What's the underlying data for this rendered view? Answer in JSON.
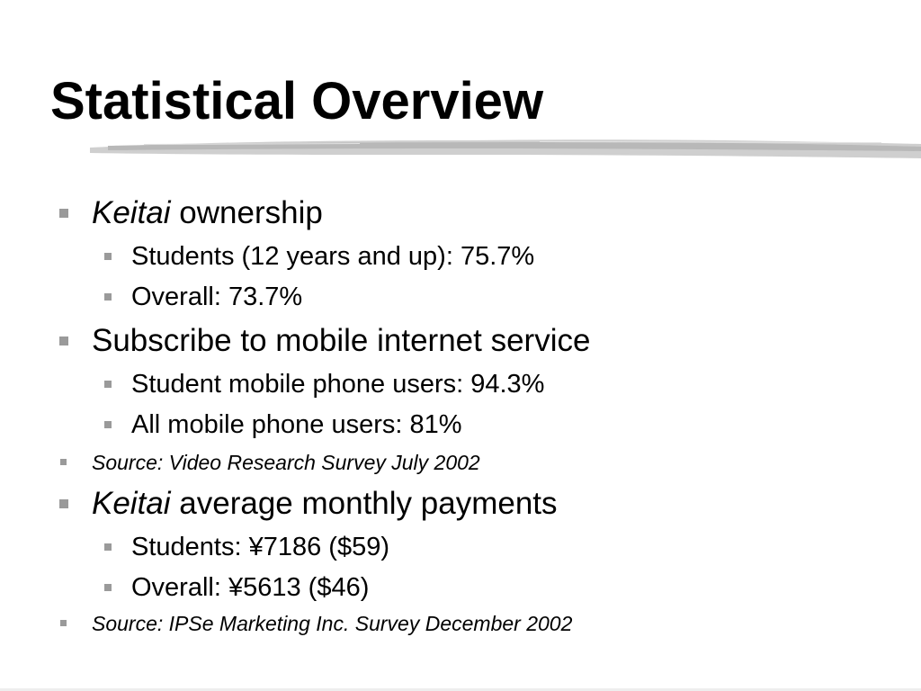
{
  "slide": {
    "title": "Statistical Overview",
    "accent_color": "#9a9a9a",
    "bullets": [
      {
        "emphasis": "Keitai",
        "text": " ownership"
      },
      {
        "text": "Students (12 years and up): 75.7%"
      },
      {
        "text": "Overall: 73.7%"
      },
      {
        "text": "Subscribe to mobile internet service"
      },
      {
        "text": "Student mobile phone users: 94.3%"
      },
      {
        "text": "All mobile phone users: 81%"
      },
      {
        "text": "Source: Video Research Survey July 2002"
      },
      {
        "emphasis": "Keitai",
        "text": " average monthly payments"
      },
      {
        "text": "Students: ¥7186 ($59)"
      },
      {
        "text": "Overall: ¥5613 ($46)"
      },
      {
        "text": "Source: IPSe Marketing Inc. Survey December 2002"
      }
    ]
  }
}
